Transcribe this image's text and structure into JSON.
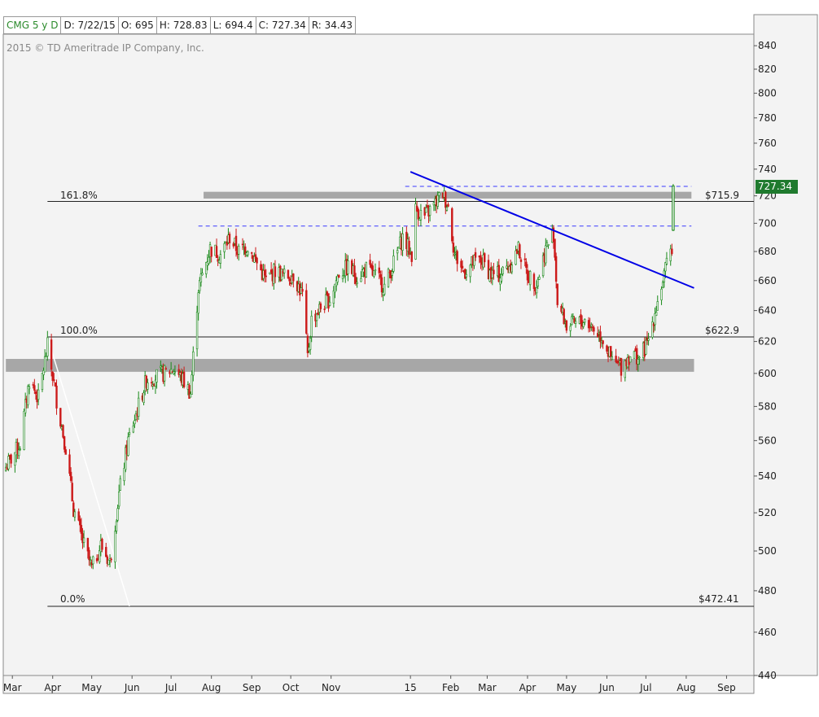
{
  "info_bar": {
    "symbol": "CMG 5 y D",
    "date": "D: 7/22/15",
    "open": "O: 695",
    "high": "H: 728.83",
    "low": "L: 694.4",
    "close": "C: 727.34",
    "range": "R: 34.43"
  },
  "copyright": "2015 © TD Ameritrade IP Company, Inc.",
  "last_price_tag": "727.34",
  "colors": {
    "up": "#1a8a1a",
    "down": "#cc1a1a",
    "trendline": "#0000e6",
    "dashed": "#3a3aff",
    "zone": "#999999",
    "price_tag": "#1f7a2e"
  },
  "fib_levels": [
    {
      "label": "161.8%",
      "price_label": "$715.9",
      "value": 715.9
    },
    {
      "label": "100.0%",
      "price_label": "$622.9",
      "value": 622.9
    },
    {
      "label": "0.0%",
      "price_label": "$472.41",
      "value": 472.41
    }
  ],
  "chart_data": {
    "type": "candlestick",
    "title": "",
    "y_scale": "log",
    "ylim": [
      440,
      850
    ],
    "y_ticks": [
      440,
      460,
      480,
      500,
      520,
      540,
      560,
      580,
      600,
      620,
      640,
      660,
      680,
      700,
      720,
      740,
      760,
      780,
      800,
      820,
      840
    ],
    "y_tick_labels": [
      "440",
      "460",
      "480",
      "500",
      "520",
      "540",
      "560",
      "580",
      "600",
      "620",
      "640",
      "660",
      "680",
      "700",
      "720",
      "740",
      "760",
      "780",
      "800",
      "820",
      "840"
    ],
    "x_labels": [
      "Mar",
      "Apr",
      "May",
      "Jun",
      "Jul",
      "Aug",
      "Sep",
      "Oct",
      "Nov",
      "15",
      "Feb",
      "Mar",
      "Apr",
      "May",
      "Jun",
      "Jul",
      "Aug",
      "Sep"
    ],
    "x_range": [
      "2014-02-22",
      "2015-09-22"
    ],
    "x_label_dates": [
      "2014-03-01",
      "2014-04-01",
      "2014-05-01",
      "2014-06-01",
      "2014-07-01",
      "2014-08-01",
      "2014-09-01",
      "2014-10-01",
      "2014-11-01",
      "2015-01-01",
      "2015-02-01",
      "2015-03-01",
      "2015-04-01",
      "2015-05-01",
      "2015-06-01",
      "2015-07-01",
      "2015-08-01",
      "2015-09-01"
    ],
    "price_path": [
      [
        "2014-02-24",
        545
      ],
      [
        "2014-03-07",
        558
      ],
      [
        "2014-03-14",
        596
      ],
      [
        "2014-03-21",
        585
      ],
      [
        "2014-03-28",
        617
      ],
      [
        "2014-04-04",
        584
      ],
      [
        "2014-04-11",
        556
      ],
      [
        "2014-04-17",
        522
      ],
      [
        "2014-04-24",
        505
      ],
      [
        "2014-05-01",
        491
      ],
      [
        "2014-05-08",
        503
      ],
      [
        "2014-05-15",
        494
      ],
      [
        "2014-05-22",
        530
      ],
      [
        "2014-05-29",
        560
      ],
      [
        "2014-06-05",
        578
      ],
      [
        "2014-06-12",
        596
      ],
      [
        "2014-06-19",
        598
      ],
      [
        "2014-06-26",
        600
      ],
      [
        "2014-07-03",
        603
      ],
      [
        "2014-07-10",
        596
      ],
      [
        "2014-07-16",
        588
      ],
      [
        "2014-07-22",
        655
      ],
      [
        "2014-07-31",
        682
      ],
      [
        "2014-08-08",
        678
      ],
      [
        "2014-08-15",
        690
      ],
      [
        "2014-08-22",
        680
      ],
      [
        "2014-08-29",
        684
      ],
      [
        "2014-09-05",
        672
      ],
      [
        "2014-09-12",
        660
      ],
      [
        "2014-09-19",
        667
      ],
      [
        "2014-09-26",
        663
      ],
      [
        "2014-10-03",
        664
      ],
      [
        "2014-10-10",
        650
      ],
      [
        "2014-10-14",
        610
      ],
      [
        "2014-10-17",
        634
      ],
      [
        "2014-10-24",
        642
      ],
      [
        "2014-10-31",
        648
      ],
      [
        "2014-11-07",
        665
      ],
      [
        "2014-11-14",
        669
      ],
      [
        "2014-11-21",
        663
      ],
      [
        "2014-11-28",
        668
      ],
      [
        "2014-12-05",
        663
      ],
      [
        "2014-12-12",
        656
      ],
      [
        "2014-12-19",
        672
      ],
      [
        "2014-12-26",
        690
      ],
      [
        "2015-01-02",
        678
      ],
      [
        "2015-01-05",
        710
      ],
      [
        "2015-01-12",
        705
      ],
      [
        "2015-01-19",
        713
      ],
      [
        "2015-01-26",
        722
      ],
      [
        "2015-01-30",
        712
      ],
      [
        "2015-02-04",
        678
      ],
      [
        "2015-02-11",
        666
      ],
      [
        "2015-02-18",
        672
      ],
      [
        "2015-02-25",
        674
      ],
      [
        "2015-03-04",
        664
      ],
      [
        "2015-03-11",
        664
      ],
      [
        "2015-03-18",
        671
      ],
      [
        "2015-03-25",
        682
      ],
      [
        "2015-04-01",
        664
      ],
      [
        "2015-04-08",
        658
      ],
      [
        "2015-04-15",
        682
      ],
      [
        "2015-04-21",
        693
      ],
      [
        "2015-04-24",
        646
      ],
      [
        "2015-05-01",
        630
      ],
      [
        "2015-05-08",
        631
      ],
      [
        "2015-05-15",
        634
      ],
      [
        "2015-05-22",
        628
      ],
      [
        "2015-05-29",
        622
      ],
      [
        "2015-06-05",
        607
      ],
      [
        "2015-06-12",
        604
      ],
      [
        "2015-06-19",
        612
      ],
      [
        "2015-06-26",
        610
      ],
      [
        "2015-07-02",
        618
      ],
      [
        "2015-07-09",
        643
      ],
      [
        "2015-07-14",
        660
      ],
      [
        "2015-07-17",
        670
      ],
      [
        "2015-07-21",
        684
      ],
      [
        "2015-07-22",
        727.34
      ]
    ],
    "last": {
      "date": "7/22/15",
      "open": 695,
      "high": 728.83,
      "low": 694.4,
      "close": 727.34,
      "range": 34.43
    },
    "annotations": {
      "trendline": [
        [
          "2015-01-01",
          738
        ],
        [
          "2015-08-07",
          655
        ]
      ],
      "fib_connector": [
        [
          "2014-03-28",
          622.9
        ],
        [
          "2014-05-30",
          472.41
        ]
      ],
      "support_zone": {
        "from": "2014-02-24",
        "to": "2015-08-07",
        "low": 601,
        "high": 609
      },
      "resistance_zone": {
        "from": "2014-07-26",
        "to": "2015-08-05",
        "low": 718,
        "high": 723
      },
      "dashed_levels": [
        {
          "value": 727,
          "from": "2014-12-28",
          "to": "2015-08-05"
        },
        {
          "value": 698,
          "from": "2014-07-22",
          "to": "2015-08-05"
        }
      ]
    }
  }
}
